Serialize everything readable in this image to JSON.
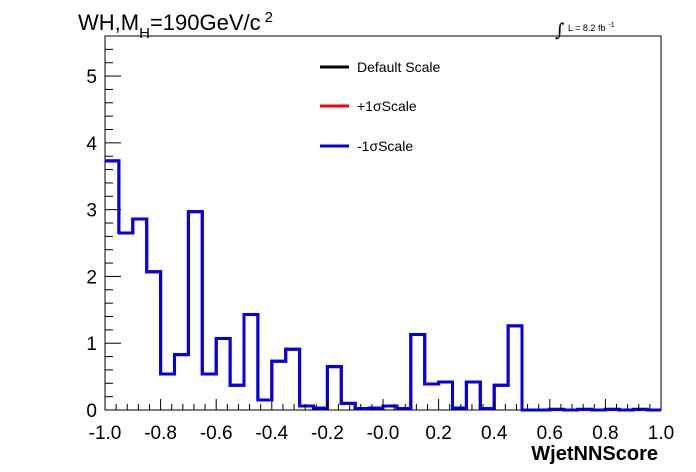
{
  "chart_data": {
    "type": "line",
    "title_main": "WH,M",
    "title_sub": "H",
    "title_rest": "=190GeV/c",
    "title_sup": "2",
    "lumi_text": "L = 8.2 fb",
    "lumi_sup": "-1",
    "xlabel": "WjetNNScore",
    "ylabel": "",
    "xlim": [
      -1.0,
      1.0
    ],
    "ylim": [
      0,
      5.6
    ],
    "x_ticks": [
      "-1.0",
      "-0.8",
      "-0.6",
      "-0.4",
      "-0.2",
      "-0.0",
      "0.2",
      "0.4",
      "0.6",
      "0.8",
      "1.0"
    ],
    "y_ticks": [
      "0",
      "1",
      "2",
      "3",
      "4",
      "5"
    ],
    "grid": false,
    "legend_position": "top-center",
    "bin_edges": [
      -1.0,
      -0.95,
      -0.9,
      -0.85,
      -0.8,
      -0.75,
      -0.7,
      -0.65,
      -0.6,
      -0.55,
      -0.5,
      -0.45,
      -0.4,
      -0.35,
      -0.3,
      -0.25,
      -0.2,
      -0.15,
      -0.1,
      -0.05,
      0.0,
      0.05,
      0.1,
      0.15,
      0.2,
      0.25,
      0.3,
      0.35,
      0.4,
      0.45,
      0.5,
      0.55,
      0.6,
      0.65,
      0.7,
      0.75,
      0.8,
      0.85,
      0.9,
      0.95,
      1.0
    ],
    "series": [
      {
        "name": "Default Scale",
        "color": "#000000",
        "values": [
          3.73,
          2.65,
          2.86,
          2.07,
          0.54,
          0.83,
          2.97,
          0.54,
          1.07,
          0.37,
          1.43,
          0.15,
          0.73,
          0.91,
          0.06,
          0.03,
          0.65,
          0.1,
          0.02,
          0.03,
          0.06,
          0.02,
          1.13,
          0.39,
          0.42,
          0.03,
          0.42,
          0.02,
          0.37,
          1.26,
          0.0,
          0.0,
          0.01,
          0.0,
          0.01,
          0.0,
          0.01,
          0.0,
          0.01,
          0.0
        ]
      },
      {
        "name": "+1σScale",
        "color": "#ff0000",
        "values": [
          3.73,
          2.65,
          2.86,
          2.07,
          0.54,
          0.83,
          2.97,
          0.54,
          1.07,
          0.37,
          1.43,
          0.15,
          0.73,
          0.91,
          0.06,
          0.03,
          0.65,
          0.1,
          0.02,
          0.03,
          0.06,
          0.02,
          1.13,
          0.39,
          0.42,
          0.03,
          0.42,
          0.02,
          0.37,
          1.26,
          0.0,
          0.0,
          0.01,
          0.0,
          0.01,
          0.0,
          0.01,
          0.0,
          0.01,
          0.0
        ]
      },
      {
        "name": "-1σScale",
        "color": "#0000ee",
        "values": [
          3.73,
          2.65,
          2.86,
          2.07,
          0.54,
          0.83,
          2.97,
          0.54,
          1.07,
          0.37,
          1.43,
          0.15,
          0.73,
          0.91,
          0.06,
          0.03,
          0.65,
          0.1,
          0.02,
          0.03,
          0.06,
          0.02,
          1.13,
          0.39,
          0.42,
          0.03,
          0.42,
          0.02,
          0.37,
          1.26,
          0.0,
          0.0,
          0.01,
          0.0,
          0.01,
          0.0,
          0.01,
          0.0,
          0.01,
          0.0
        ]
      }
    ]
  }
}
